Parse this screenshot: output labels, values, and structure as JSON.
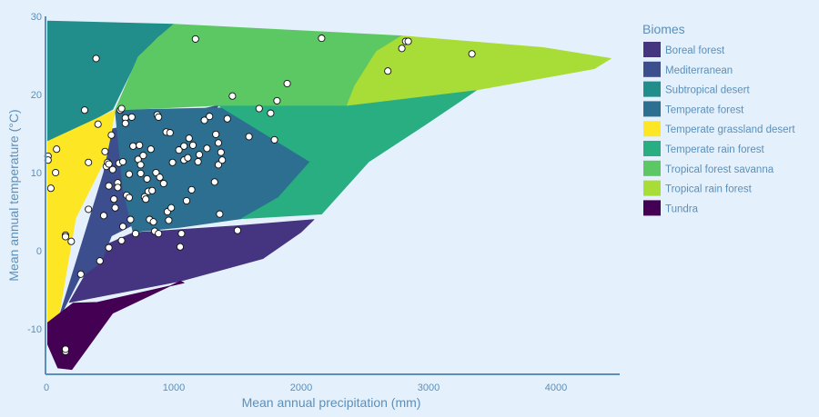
{
  "chart_data": {
    "type": "scatter",
    "xlabel": "Mean annual precipitation (mm)",
    "ylabel": "Mean annual temperature (°C)",
    "xlim": [
      0,
      4500
    ],
    "ylim": [
      -16,
      30
    ],
    "xticks": [
      0,
      1000,
      2000,
      3000,
      4000
    ],
    "yticks": [
      -10,
      0,
      10,
      20,
      30
    ],
    "grid": false,
    "legend_title": "Biomes",
    "legend_position": "right",
    "biomes": [
      {
        "name": "Boreal forest",
        "color": "#45347f",
        "polygon": [
          [
            180,
            -6.6
          ],
          [
            1050,
            -3.9
          ],
          [
            1700,
            -1
          ],
          [
            2000,
            2.4
          ],
          [
            2100,
            4
          ],
          [
            1500,
            3.2
          ],
          [
            680,
            2.3
          ],
          [
            430,
            0.5
          ],
          [
            180,
            -6.6
          ]
        ]
      },
      {
        "name": "Mediterranean",
        "color": "#3d4e8e",
        "polygon": [
          [
            520,
            15.6
          ],
          [
            1350,
            18.6
          ],
          [
            830,
            5.8
          ],
          [
            680,
            3.3
          ],
          [
            510,
            1.9
          ],
          [
            430,
            -1.5
          ],
          [
            260,
            -3.5
          ],
          [
            90,
            -9
          ],
          [
            450,
            10
          ],
          [
            520,
            15.6
          ]
        ]
      },
      {
        "name": "Subtropical desert",
        "color": "#218e8c",
        "polygon": [
          [
            10,
            29.4
          ],
          [
            1000,
            29
          ],
          [
            870,
            27.3
          ],
          [
            720,
            24.8
          ],
          [
            520,
            18.1
          ],
          [
            230,
            15.5
          ],
          [
            10,
            14
          ],
          [
            10,
            29.4
          ]
        ]
      },
      {
        "name": "Temperate forest",
        "color": "#2c6f90",
        "polygon": [
          [
            540,
            18
          ],
          [
            2360,
            18.6
          ],
          [
            2070,
            11.4
          ],
          [
            1820,
            6.8
          ],
          [
            1530,
            4.1
          ],
          [
            1050,
            3
          ],
          [
            680,
            2.4
          ],
          [
            600,
            8
          ],
          [
            540,
            18
          ]
        ]
      },
      {
        "name": "Temperate grassland desert",
        "color": "#fde724",
        "polygon": [
          [
            10,
            14
          ],
          [
            540,
            18
          ],
          [
            470,
            12
          ],
          [
            230,
            4.2
          ],
          [
            90,
            -9
          ],
          [
            10,
            -9.2
          ],
          [
            10,
            14
          ]
        ]
      },
      {
        "name": "Temperate rain forest",
        "color": "#28ae80",
        "polygon": [
          [
            1350,
            18.6
          ],
          [
            2360,
            18.6
          ],
          [
            3380,
            20.6
          ],
          [
            2980,
            16.2
          ],
          [
            2530,
            11.4
          ],
          [
            2160,
            4.7
          ],
          [
            1530,
            4.1
          ],
          [
            1820,
            6.8
          ],
          [
            2070,
            11.4
          ],
          [
            1350,
            18.6
          ]
        ]
      },
      {
        "name": "Tropical forest savanna",
        "color": "#5cc863",
        "polygon": [
          [
            880,
            27.3
          ],
          [
            1000,
            29
          ],
          [
            2790,
            27.5
          ],
          [
            2590,
            25.5
          ],
          [
            2420,
            21.1
          ],
          [
            2360,
            18.6
          ],
          [
            1350,
            18.6
          ],
          [
            540,
            18
          ],
          [
            720,
            24.8
          ],
          [
            880,
            27.3
          ]
        ]
      },
      {
        "name": "Tropical rain forest",
        "color": "#a8dc37",
        "polygon": [
          [
            2790,
            27.5
          ],
          [
            3900,
            26
          ],
          [
            4430,
            24.6
          ],
          [
            4300,
            23.3
          ],
          [
            3380,
            20.6
          ],
          [
            2360,
            18.6
          ],
          [
            2420,
            21.1
          ],
          [
            2590,
            25.5
          ],
          [
            2790,
            27.5
          ]
        ]
      },
      {
        "name": "Tundra",
        "color": "#440154",
        "polygon": [
          [
            10,
            -9.2
          ],
          [
            210,
            -6.7
          ],
          [
            400,
            -6.6
          ],
          [
            1080,
            -4.1
          ],
          [
            1050,
            -3.9
          ],
          [
            520,
            -8
          ],
          [
            200,
            -15.2
          ],
          [
            90,
            -15
          ],
          [
            10,
            -12
          ],
          [
            10,
            -9.2
          ]
        ]
      }
    ],
    "points": [
      [
        13,
        12.1
      ],
      [
        13,
        11.6
      ],
      [
        35,
        8
      ],
      [
        72,
        10
      ],
      [
        80,
        13
      ],
      [
        150,
        -12.9
      ],
      [
        150,
        -12.6
      ],
      [
        150,
        2
      ],
      [
        150,
        1.8
      ],
      [
        195,
        1.2
      ],
      [
        270,
        -3
      ],
      [
        300,
        18
      ],
      [
        330,
        11.3
      ],
      [
        330,
        5.3
      ],
      [
        390,
        24.6
      ],
      [
        405,
        16.2
      ],
      [
        420,
        -1.3
      ],
      [
        450,
        4.5
      ],
      [
        460,
        12.7
      ],
      [
        470,
        10.8
      ],
      [
        480,
        11.3
      ],
      [
        490,
        11.1
      ],
      [
        490,
        0.4
      ],
      [
        490,
        8.3
      ],
      [
        510,
        14.8
      ],
      [
        520,
        10.4
      ],
      [
        530,
        6.6
      ],
      [
        540,
        5.5
      ],
      [
        560,
        8.7
      ],
      [
        560,
        8.1
      ],
      [
        570,
        11.2
      ],
      [
        580,
        18
      ],
      [
        590,
        18.2
      ],
      [
        590,
        1.3
      ],
      [
        600,
        3.1
      ],
      [
        600,
        11.4
      ],
      [
        620,
        17
      ],
      [
        620,
        16.3
      ],
      [
        630,
        7.1
      ],
      [
        650,
        6.8
      ],
      [
        650,
        9.8
      ],
      [
        660,
        4
      ],
      [
        670,
        17.1
      ],
      [
        680,
        13.4
      ],
      [
        700,
        2.2
      ],
      [
        720,
        11.7
      ],
      [
        730,
        13.5
      ],
      [
        740,
        11
      ],
      [
        740,
        9.9
      ],
      [
        760,
        12.2
      ],
      [
        770,
        6.9
      ],
      [
        780,
        6.6
      ],
      [
        790,
        9.2
      ],
      [
        800,
        7.6
      ],
      [
        810,
        4
      ],
      [
        820,
        13
      ],
      [
        830,
        7.7
      ],
      [
        840,
        3.7
      ],
      [
        850,
        2.5
      ],
      [
        860,
        10
      ],
      [
        870,
        17.4
      ],
      [
        880,
        17.1
      ],
      [
        880,
        2.2
      ],
      [
        890,
        9.4
      ],
      [
        920,
        8.6
      ],
      [
        940,
        15.2
      ],
      [
        950,
        5
      ],
      [
        960,
        3.9
      ],
      [
        970,
        15.1
      ],
      [
        980,
        5.5
      ],
      [
        990,
        11.3
      ],
      [
        1040,
        12.9
      ],
      [
        1050,
        0.5
      ],
      [
        1060,
        2.2
      ],
      [
        1080,
        13.4
      ],
      [
        1080,
        11.6
      ],
      [
        1100,
        6.4
      ],
      [
        1110,
        11.9
      ],
      [
        1120,
        14.4
      ],
      [
        1140,
        7.8
      ],
      [
        1150,
        13.5
      ],
      [
        1170,
        27.1
      ],
      [
        1190,
        11.4
      ],
      [
        1200,
        12.3
      ],
      [
        1240,
        16.7
      ],
      [
        1260,
        13.1
      ],
      [
        1280,
        17.2
      ],
      [
        1320,
        8.8
      ],
      [
        1330,
        14.9
      ],
      [
        1350,
        11
      ],
      [
        1350,
        13.8
      ],
      [
        1360,
        4.7
      ],
      [
        1370,
        12.6
      ],
      [
        1380,
        11.6
      ],
      [
        1420,
        16.9
      ],
      [
        1460,
        19.8
      ],
      [
        1500,
        2.6
      ],
      [
        1590,
        14.6
      ],
      [
        1670,
        18.2
      ],
      [
        1760,
        17.6
      ],
      [
        1790,
        14.2
      ],
      [
        1810,
        19.2
      ],
      [
        1890,
        21.4
      ],
      [
        2160,
        27.2
      ],
      [
        2680,
        23
      ],
      [
        2790,
        25.9
      ],
      [
        2820,
        26.8
      ],
      [
        2840,
        26.8
      ],
      [
        3340,
        25.2
      ]
    ]
  }
}
